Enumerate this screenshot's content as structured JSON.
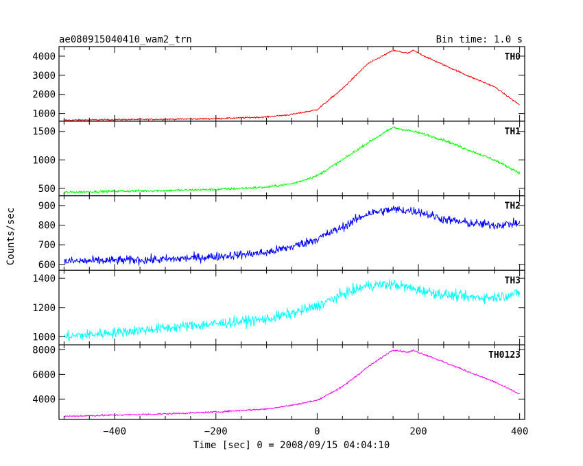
{
  "header": {
    "title": "ae080915040410_wam2_trn",
    "bin_time": "Bin time: 1.0 s"
  },
  "chart_data": {
    "type": "line",
    "xlabel": "Time [sec] 0 = 2008/09/15 04:04:10",
    "ylabel": "Counts/sec",
    "xlim": [
      -510,
      410
    ],
    "x_ticks": [
      -400,
      -200,
      0,
      200,
      400
    ],
    "x_tick_labels": [
      "−400",
      "−200",
      "0",
      "200",
      "400"
    ],
    "grid": false,
    "panels": [
      {
        "name": "TH0",
        "color": "#ff0000",
        "ylim": [
          600,
          4500
        ],
        "y_ticks": [
          1000,
          2000,
          3000,
          4000
        ],
        "y_tick_labels": [
          "1000",
          "2000",
          "3000",
          "4000"
        ],
        "noise": 40,
        "x": [
          -500,
          -400,
          -300,
          -200,
          -100,
          -50,
          0,
          50,
          100,
          150,
          180,
          190,
          220,
          300,
          350,
          400
        ],
        "y": [
          650,
          680,
          700,
          730,
          820,
          950,
          1200,
          2300,
          3600,
          4300,
          4150,
          4300,
          3900,
          2950,
          2400,
          1450
        ]
      },
      {
        "name": "TH1",
        "color": "#00ff00",
        "ylim": [
          370,
          1680
        ],
        "y_ticks": [
          500,
          1000,
          1500
        ],
        "y_tick_labels": [
          "500",
          "1000",
          "1500"
        ],
        "noise": 22,
        "x": [
          -500,
          -400,
          -300,
          -200,
          -100,
          -50,
          0,
          50,
          100,
          150,
          200,
          250,
          300,
          350,
          400
        ],
        "y": [
          430,
          450,
          460,
          480,
          520,
          580,
          720,
          1000,
          1300,
          1570,
          1480,
          1350,
          1170,
          1000,
          770
        ]
      },
      {
        "name": "TH2",
        "color": "#0000ff",
        "ylim": [
          570,
          950
        ],
        "y_ticks": [
          600,
          700,
          800,
          900
        ],
        "y_tick_labels": [
          "600",
          "700",
          "800",
          "900"
        ],
        "noise": 22,
        "x": [
          -500,
          -400,
          -300,
          -200,
          -100,
          -50,
          0,
          50,
          100,
          150,
          200,
          250,
          300,
          350,
          400
        ],
        "y": [
          615,
          620,
          625,
          640,
          660,
          690,
          730,
          790,
          860,
          880,
          870,
          830,
          810,
          800,
          810
        ]
      },
      {
        "name": "TH3",
        "color": "#00ffff",
        "ylim": [
          945,
          1455
        ],
        "y_ticks": [
          1000,
          1200,
          1400
        ],
        "y_tick_labels": [
          "1000",
          "1200",
          "1400"
        ],
        "noise": 35,
        "x": [
          -500,
          -400,
          -300,
          -200,
          -100,
          -50,
          0,
          50,
          100,
          150,
          200,
          250,
          300,
          350,
          400
        ],
        "y": [
          1000,
          1030,
          1060,
          1090,
          1120,
          1160,
          1210,
          1290,
          1350,
          1360,
          1320,
          1290,
          1270,
          1270,
          1300
        ]
      },
      {
        "name": "TH0123",
        "color": "#ff00ff",
        "ylim": [
          2350,
          8400
        ],
        "y_ticks": [
          4000,
          6000,
          8000
        ],
        "y_tick_labels": [
          "4000",
          "6000",
          "8000"
        ],
        "noise": 70,
        "x": [
          -500,
          -400,
          -300,
          -200,
          -100,
          -50,
          0,
          50,
          100,
          150,
          180,
          190,
          220,
          300,
          350,
          400
        ],
        "y": [
          2600,
          2700,
          2800,
          2950,
          3200,
          3500,
          3900,
          5000,
          6600,
          8000,
          7800,
          7950,
          7500,
          6200,
          5400,
          4400
        ]
      }
    ]
  }
}
